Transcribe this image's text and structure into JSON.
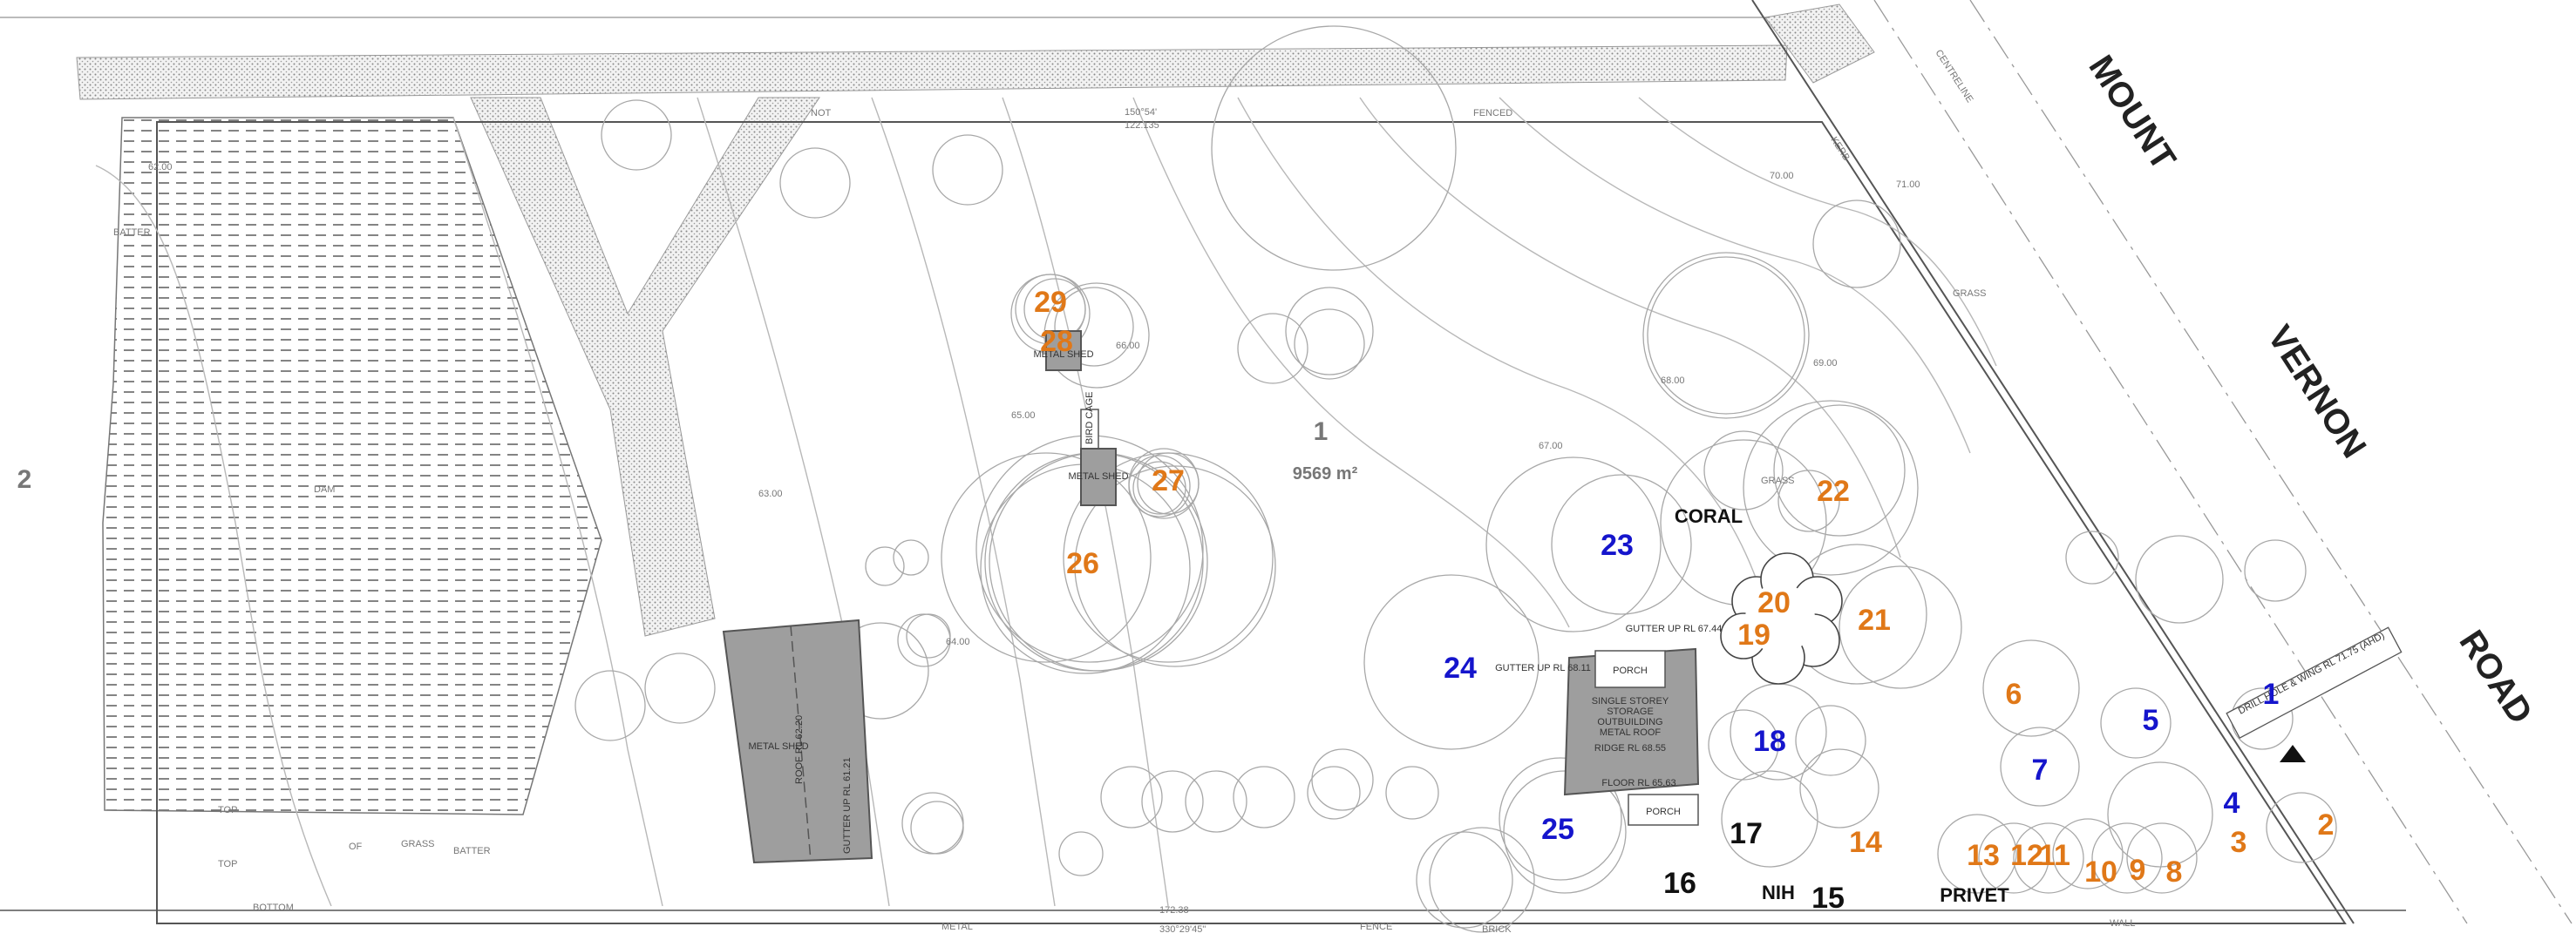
{
  "colors": {
    "tree_orange": "#E07818",
    "tree_blue": "#1515CC",
    "tree_black": "#111111",
    "building_fill": "#9E9E9E",
    "hatch": "#777777",
    "linework": "#555555"
  },
  "road": {
    "words": [
      "MOUNT",
      "VERNON",
      "ROAD"
    ]
  },
  "lot": {
    "number": "1",
    "area": "9569 m²"
  },
  "side_lot": "2",
  "buildings": {
    "metal_shed_large": [
      "METAL SHED",
      "ROOF RL 62.20",
      "GUTTER UP RL 61.21"
    ],
    "main_outbuilding": [
      "SINGLE STOREY",
      "STORAGE",
      "OUTBUILDING",
      "METAL ROOF"
    ],
    "porch_top": "PORCH",
    "porch_bottom": "PORCH",
    "floor_rl": "FLOOR RL 65.63",
    "ridge_rl": "RIDGE RL 68.55",
    "gutter_left": "GUTTER UP RL 68.11",
    "gutter_right": "GUTTER UP RL 67.44",
    "shed_small_1": "METAL SHED",
    "shed_small_2": "METAL SHED",
    "bird_cage": "BIRD CAGE"
  },
  "annotations": {
    "grass_1": "GRASS",
    "grass_2": "GRASS",
    "grass_3": "GRASS",
    "dam": "DAM",
    "batter_1": "BATTER",
    "batter_2": "BATTER",
    "top_1": "TOP",
    "top_2": "TOP",
    "of": "OF",
    "bottom": "BOTTOM",
    "fenced": "FENCED",
    "not": "NOT",
    "metal": "METAL",
    "fence": "FENCE",
    "brick": "BRICK",
    "wall": "WALL",
    "bearing_top": "150°54'",
    "dist_top": "122.135",
    "dist_bottom": "172.38",
    "bearing_bottom": "330°29'45\"",
    "centreline": "CENTRELINE",
    "kerb": "KERB",
    "drill_hole": "DRILL HOLE & WING RL 71.75 (AHD)"
  },
  "contour_labels": [
    "62.00",
    "63.00",
    "64.00",
    "65.00",
    "66.00",
    "67.00",
    "68.00",
    "69.00",
    "70.00",
    "71.00"
  ],
  "vegetation_labels": {
    "coral": "CORAL",
    "nih": "NIH",
    "privet": "PRIVET"
  },
  "tree_labels": [
    {
      "n": "1",
      "color": "blue"
    },
    {
      "n": "2",
      "color": "orange"
    },
    {
      "n": "3",
      "color": "orange"
    },
    {
      "n": "4",
      "color": "blue"
    },
    {
      "n": "5",
      "color": "blue"
    },
    {
      "n": "6",
      "color": "orange"
    },
    {
      "n": "7",
      "color": "blue"
    },
    {
      "n": "8",
      "color": "orange"
    },
    {
      "n": "9",
      "color": "orange"
    },
    {
      "n": "10",
      "color": "orange"
    },
    {
      "n": "11",
      "color": "orange"
    },
    {
      "n": "12",
      "color": "orange"
    },
    {
      "n": "13",
      "color": "orange"
    },
    {
      "n": "14",
      "color": "orange"
    },
    {
      "n": "15",
      "color": "black"
    },
    {
      "n": "16",
      "color": "black"
    },
    {
      "n": "17",
      "color": "black"
    },
    {
      "n": "18",
      "color": "blue"
    },
    {
      "n": "19",
      "color": "orange"
    },
    {
      "n": "20",
      "color": "orange"
    },
    {
      "n": "21",
      "color": "orange"
    },
    {
      "n": "22",
      "color": "orange"
    },
    {
      "n": "23",
      "color": "blue"
    },
    {
      "n": "24",
      "color": "blue"
    },
    {
      "n": "25",
      "color": "blue"
    },
    {
      "n": "26",
      "color": "orange"
    },
    {
      "n": "27",
      "color": "orange"
    },
    {
      "n": "28",
      "color": "orange"
    },
    {
      "n": "29",
      "color": "orange"
    }
  ]
}
